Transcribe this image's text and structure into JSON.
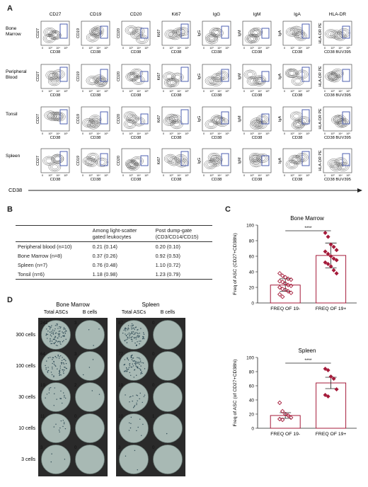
{
  "panels": {
    "A": "A",
    "B": "B",
    "C": "C",
    "D": "D"
  },
  "flow": {
    "columns": [
      "CD27",
      "CD19",
      "CD20",
      "Ki67",
      "IgG",
      "IgM",
      "IgA",
      "HLA-DR"
    ],
    "y_axis_labels": [
      "CD27",
      "CD19",
      "CD20",
      "Ki67",
      "IgG",
      "IgM",
      "IgA",
      "HLA-DR PE"
    ],
    "x_axis_label": "CD38",
    "x_axis_label_last": "CD38 BUV395",
    "tick_labels": [
      "0",
      "10³",
      "10⁴",
      "10⁵"
    ],
    "rows": [
      "Bone Marrow",
      "Peripheral Blood",
      "Tonsil",
      "Spleen"
    ],
    "arrow_label": "CD38"
  },
  "table": {
    "headers": [
      "",
      "Among light-scatter gated leukocytes",
      "Post dump-gate (CD3/CD14/CD15)"
    ],
    "rows": [
      [
        "Peripheral blood (n=10)",
        "0.21 (0.14)",
        "0.20 (0.10)"
      ],
      [
        "Bone Marrow (n=8)",
        "0.37 (0.26)",
        "0.92 (0.53)"
      ],
      [
        "Spleen (n=7)",
        "0.76 (0.48)",
        "1.10 (0.72)"
      ],
      [
        "Tonsil (n=6)",
        "1.18 (0.98)",
        "1.23 (0.79)"
      ]
    ]
  },
  "elispot": {
    "groups": [
      {
        "title": "Bone Marrow",
        "subtitles": [
          "Total ASCs",
          "B cells"
        ]
      },
      {
        "title": "Spleen",
        "subtitles": [
          "Total ASCs",
          "B cells"
        ]
      }
    ],
    "row_labels": [
      "300 cells",
      "100 cells",
      "30 cells",
      "10 cells",
      "3 cells"
    ],
    "counts": [
      [
        "243",
        "3",
        "87",
        "0"
      ],
      [
        "64",
        "3",
        "77",
        "0"
      ],
      [
        "19",
        "2",
        "19",
        "0"
      ],
      [
        "11",
        "0",
        "10",
        "1"
      ],
      [
        "3",
        "0",
        "3",
        "0"
      ]
    ]
  },
  "chart_data": [
    {
      "type": "scatter",
      "title": "Bone Marrow",
      "ylabel": "Freq of ASC (CD27+CD38hi)",
      "categories": [
        "FREQ OF 19-",
        "FREQ OF 19+"
      ],
      "ylim": [
        0,
        100
      ],
      "yticks": [
        0,
        20,
        40,
        60,
        80,
        100
      ],
      "significance": "****",
      "bar_means": [
        23,
        61
      ],
      "error_sd": [
        8,
        16
      ],
      "series": [
        {
          "category": "FREQ OF 19-",
          "values": [
            38,
            35,
            33,
            31,
            30,
            28,
            27,
            25,
            23,
            22,
            20,
            18,
            17,
            15,
            13,
            11,
            8
          ]
        },
        {
          "category": "FREQ OF 19+",
          "values": [
            90,
            85,
            75,
            72,
            68,
            66,
            63,
            60,
            57,
            55,
            52,
            50,
            47,
            42,
            38
          ]
        }
      ]
    },
    {
      "type": "scatter",
      "title": "Spleen",
      "ylabel": "Freq of ASC (of CD27+CD38hi)",
      "categories": [
        "FREQ OF 19-",
        "FREQ OF 19+"
      ],
      "ylim": [
        0,
        100
      ],
      "yticks": [
        0,
        20,
        40,
        60,
        80,
        100
      ],
      "significance": "****",
      "bar_means": [
        18,
        64
      ],
      "error_sd": [
        4,
        8
      ],
      "series": [
        {
          "category": "FREQ OF 19-",
          "values": [
            36,
            24,
            20,
            18,
            15,
            13,
            12
          ]
        },
        {
          "category": "FREQ OF 19+",
          "values": [
            84,
            82,
            73,
            70,
            55,
            47,
            45
          ]
        }
      ]
    }
  ]
}
